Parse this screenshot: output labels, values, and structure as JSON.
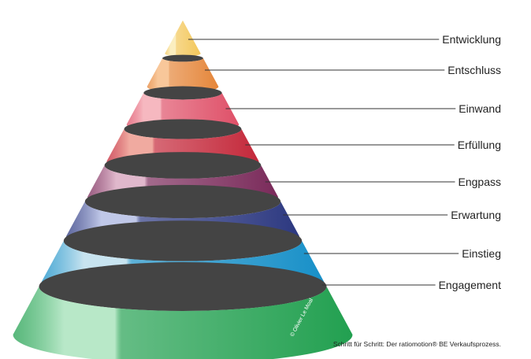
{
  "levels": [
    {
      "label": "Entwicklung"
    },
    {
      "label": "Entschluss"
    },
    {
      "label": "Einwand"
    },
    {
      "label": "Erfüllung"
    },
    {
      "label": "Engpass"
    },
    {
      "label": "Erwartung"
    },
    {
      "label": "Einstieg"
    },
    {
      "label": "Engagement"
    }
  ],
  "copyright": "© Olivier Le Moal",
  "caption": "Schritt für Schritt: Der ratiomotion® BE Verkaufsprozess."
}
